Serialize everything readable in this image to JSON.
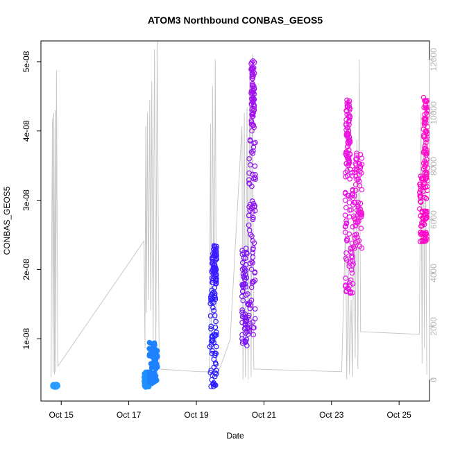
{
  "chart_data": {
    "type": "scatter",
    "title": "ATOM3 Northbound CONBAS_GEOS5",
    "xlabel": "Date",
    "ylabel": "CONBAS_GEOS5",
    "x_ticks": [
      "Oct 15",
      "Oct 17",
      "Oct 19",
      "Oct 21",
      "Oct 23",
      "Oct 25"
    ],
    "x_tick_days": [
      15,
      17,
      19,
      21,
      23,
      25
    ],
    "xlim_days": [
      14.4,
      25.9
    ],
    "y_ticks": [
      "1e-08",
      "2e-08",
      "3e-08",
      "4e-08",
      "5e-08"
    ],
    "y_tick_values": [
      1e-08,
      2e-08,
      3e-08,
      4e-08,
      5e-08
    ],
    "ylim": [
      1e-09,
      5.3e-08
    ],
    "y2_ticks": [
      "0",
      "2000",
      "4000",
      "6000",
      "8000",
      "10000",
      "12000"
    ],
    "y2_tick_values": [
      0,
      2000,
      4000,
      6000,
      8000,
      10000,
      12000
    ],
    "y2lim": [
      -800,
      12700
    ],
    "colors": {
      "altitude_line": "#c8c8c8",
      "right_axis": "#b4b4b4",
      "color_ramp": [
        "#1e96ff",
        "#1e28ff",
        "#8c14f0",
        "#f014dc",
        "#ff00c8"
      ]
    },
    "series": [
      {
        "x_range": [
          14.75,
          14.9
        ],
        "y_range": [
          3e-09,
          3.4e-09
        ],
        "color": "#2b9bff",
        "filled": true
      },
      {
        "x_range": [
          17.45,
          17.6
        ],
        "y_range": [
          3e-09,
          5.2e-09
        ],
        "color": "#1e90ff",
        "filled": true
      },
      {
        "x_range": [
          17.6,
          17.85
        ],
        "y_range": [
          3.5e-09,
          9.5e-09
        ],
        "color": "#1e82ff",
        "filled": true
      },
      {
        "x_range": [
          19.4,
          19.6
        ],
        "y_range": [
          3e-09,
          1.85e-08
        ],
        "color": "#2a1cff",
        "filled": false
      },
      {
        "x_range": [
          19.45,
          19.6
        ],
        "y_range": [
          1.8e-08,
          2.35e-08
        ],
        "color": "#3c1cff",
        "filled": false
      },
      {
        "x_range": [
          20.35,
          20.55
        ],
        "y_range": [
          9e-09,
          2.4e-08
        ],
        "color": "#7a14f5",
        "filled": false
      },
      {
        "x_range": [
          20.55,
          20.75
        ],
        "y_range": [
          1e-08,
          3.95e-08
        ],
        "color": "#8e14f0",
        "filled": false
      },
      {
        "x_range": [
          20.62,
          20.72
        ],
        "y_range": [
          4e-08,
          5.05e-08
        ],
        "color": "#a414ec",
        "filled": false
      },
      {
        "x_range": [
          23.4,
          23.65
        ],
        "y_range": [
          1.65e-08,
          3.5e-08
        ],
        "color": "#e214e2",
        "filled": false
      },
      {
        "x_range": [
          23.42,
          23.55
        ],
        "y_range": [
          3.5e-08,
          4.45e-08
        ],
        "color": "#ea14e0",
        "filled": false
      },
      {
        "x_range": [
          23.65,
          23.9
        ],
        "y_range": [
          2.3e-08,
          3.8e-08
        ],
        "color": "#f014dc",
        "filled": false
      },
      {
        "x_range": [
          25.6,
          25.85
        ],
        "y_range": [
          2.4e-08,
          3.35e-08
        ],
        "color": "#ff00c8",
        "filled": false
      },
      {
        "x_range": [
          25.72,
          25.85
        ],
        "y_range": [
          3.35e-08,
          4.5e-08
        ],
        "color": "#ff10cc",
        "filled": false
      }
    ],
    "altitude": {
      "axis": "right",
      "path": [
        [
          14.7,
          100
        ],
        [
          14.72,
          5800
        ],
        [
          14.74,
          9800
        ],
        [
          14.76,
          300
        ],
        [
          14.78,
          10000
        ],
        [
          14.8,
          200
        ],
        [
          14.82,
          10100
        ],
        [
          14.84,
          300
        ],
        [
          14.86,
          11600
        ],
        [
          14.9,
          500
        ],
        [
          17.45,
          5200
        ],
        [
          17.48,
          1200
        ],
        [
          17.5,
          9500
        ],
        [
          17.52,
          2500
        ],
        [
          17.55,
          10000
        ],
        [
          17.58,
          3000
        ],
        [
          17.62,
          10500
        ],
        [
          17.65,
          2600
        ],
        [
          17.68,
          11200
        ],
        [
          17.72,
          1500
        ],
        [
          17.76,
          12400
        ],
        [
          17.8,
          700
        ],
        [
          17.84,
          12700
        ],
        [
          17.9,
          400
        ],
        [
          19.1,
          300
        ],
        [
          19.38,
          300
        ],
        [
          19.42,
          9600
        ],
        [
          19.44,
          800
        ],
        [
          19.48,
          11000
        ],
        [
          19.52,
          1200
        ],
        [
          19.56,
          12000
        ],
        [
          19.6,
          100
        ],
        [
          20.0,
          1500
        ],
        [
          20.35,
          9500
        ],
        [
          20.38,
          0
        ],
        [
          20.42,
          10000
        ],
        [
          20.45,
          100
        ],
        [
          20.5,
          10200
        ],
        [
          20.53,
          0
        ],
        [
          20.58,
          11800
        ],
        [
          20.62,
          100
        ],
        [
          20.66,
          12200
        ],
        [
          20.7,
          400
        ],
        [
          23.3,
          300
        ],
        [
          23.42,
          6000
        ],
        [
          23.45,
          0
        ],
        [
          23.5,
          4500
        ],
        [
          23.53,
          200
        ],
        [
          23.58,
          3000
        ],
        [
          23.62,
          100
        ],
        [
          23.66,
          6500
        ],
        [
          23.7,
          800
        ],
        [
          23.75,
          9000
        ],
        [
          23.78,
          400
        ],
        [
          23.82,
          12000
        ],
        [
          23.86,
          1800
        ],
        [
          25.6,
          1700
        ],
        [
          25.65,
          10000
        ],
        [
          25.68,
          600
        ],
        [
          25.72,
          9600
        ],
        [
          25.75,
          1200
        ],
        [
          25.78,
          9800
        ],
        [
          25.82,
          200
        ]
      ]
    }
  }
}
